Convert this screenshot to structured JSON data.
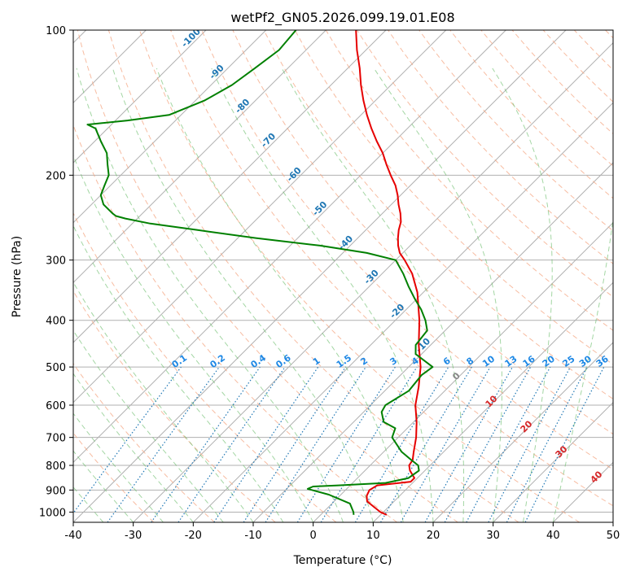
{
  "chart_data": {
    "type": "line",
    "title": "wetPf2_GN05.2026.099.19.01.E08",
    "xlabel": "Temperature (°C)",
    "ylabel": "Pressure (hPa)",
    "xlim": [
      -40,
      50
    ],
    "ylim": [
      1050,
      100
    ],
    "y_scale": "log",
    "skew": 1.0,
    "grid": true,
    "x_ticks": [
      -40,
      -30,
      -20,
      -10,
      0,
      10,
      20,
      30,
      40,
      50
    ],
    "y_ticks": [
      100,
      200,
      300,
      400,
      500,
      600,
      700,
      800,
      900,
      1000
    ],
    "colors": {
      "temperature": "#e60000",
      "dewpoint": "#008000",
      "dry_adiabats": "#f4a582",
      "moist_adiabats": "#66bb66",
      "mixing_ratio": "#1f77b4",
      "isotherm_labels_warm": "#d62728",
      "isotherm_labels_cold": "#1f77b4",
      "mixing_labels": "#1e88e5",
      "grid": "#b0b0b0"
    },
    "series": [
      {
        "key": "temperature",
        "p": [
          1013,
          1000,
          975,
          950,
          925,
          900,
          880,
          865,
          850,
          820,
          800,
          780,
          750,
          700,
          650,
          600,
          550,
          500,
          450,
          400,
          350,
          320,
          300,
          290,
          280,
          270,
          260,
          250,
          240,
          230,
          220,
          210,
          200,
          190,
          180,
          170,
          160,
          150,
          140,
          130,
          120,
          110,
          100
        ],
        "t": [
          11.0,
          9.5,
          7.5,
          5.5,
          4.5,
          4.0,
          4.5,
          9.5,
          9.5,
          7.5,
          6.5,
          6.2,
          5.0,
          3.0,
          0.5,
          -2.5,
          -5.0,
          -8.0,
          -12.0,
          -16.0,
          -21.0,
          -25.0,
          -28.5,
          -30.5,
          -32.0,
          -33.3,
          -34.5,
          -35.5,
          -37.0,
          -38.8,
          -40.5,
          -42.5,
          -45.0,
          -47.5,
          -50.0,
          -53.0,
          -56.0,
          -59.0,
          -62.0,
          -65.0,
          -68.0,
          -71.5,
          -75.0
        ]
      },
      {
        "key": "dewpoint",
        "p": [
          1013,
          1000,
          960,
          920,
          895,
          885,
          880,
          870,
          850,
          820,
          800,
          780,
          750,
          700,
          670,
          650,
          620,
          600,
          560,
          520,
          500,
          470,
          450,
          420,
          400,
          380,
          360,
          340,
          320,
          300,
          290,
          280,
          270,
          260,
          252,
          246,
          243,
          240,
          230,
          220,
          210,
          200,
          190,
          180,
          170,
          160,
          157,
          154,
          150,
          140,
          130,
          120,
          110,
          100
        ],
        "t": [
          5.5,
          5.0,
          3.0,
          -2.0,
          -6.5,
          -6.0,
          -2.0,
          5.5,
          8.5,
          9.0,
          8.0,
          6.0,
          3.0,
          -1.0,
          -2.0,
          -5.0,
          -7.0,
          -7.5,
          -6.0,
          -6.5,
          -6.0,
          -11.0,
          -12.5,
          -13.0,
          -15.0,
          -17.5,
          -20.5,
          -23.5,
          -26.5,
          -30.0,
          -36.0,
          -45.0,
          -57.0,
          -68.0,
          -77.0,
          -82.0,
          -84.0,
          -85.0,
          -88.0,
          -90.0,
          -91.0,
          -92.0,
          -94.0,
          -96.0,
          -99.0,
          -102.0,
          -104.0,
          -98.0,
          -92.0,
          -88.5,
          -86.5,
          -85.5,
          -84.5,
          -85.0
        ]
      }
    ],
    "isotherm_labels": {
      "warm": [
        0,
        10,
        20,
        30,
        40
      ],
      "cold": [
        -10,
        -20,
        -30,
        -40,
        -50,
        -60,
        -70,
        -80,
        -90,
        -100
      ]
    },
    "mixing_ratio_labels": [
      "0.1",
      "0.2",
      "0.4",
      "0.6",
      "1",
      "1.5",
      "2",
      "3",
      "4",
      "6",
      "8",
      "10",
      "13",
      "16",
      "20",
      "25",
      "30",
      "36"
    ],
    "mixing_ratio_values": [
      0.1,
      0.2,
      0.4,
      0.6,
      1,
      1.5,
      2,
      3,
      4,
      6,
      8,
      10,
      13,
      16,
      20,
      25,
      30,
      36
    ]
  }
}
